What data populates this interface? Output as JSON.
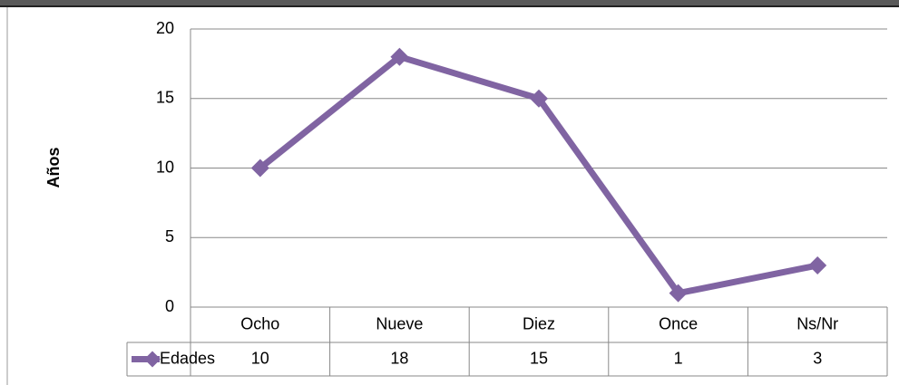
{
  "chart_data": {
    "type": "line",
    "y_label": "Años",
    "categories": [
      "Ocho",
      "Nueve",
      "Diez",
      "Once",
      "Ns/Nr"
    ],
    "series": [
      {
        "name": "Edades",
        "color": "#8064a2",
        "values": [
          10,
          18,
          15,
          1,
          3
        ]
      }
    ],
    "ylim": [
      0,
      20
    ],
    "yticks": [
      0,
      5,
      10,
      15,
      20
    ],
    "grid": true,
    "data_table": true
  }
}
